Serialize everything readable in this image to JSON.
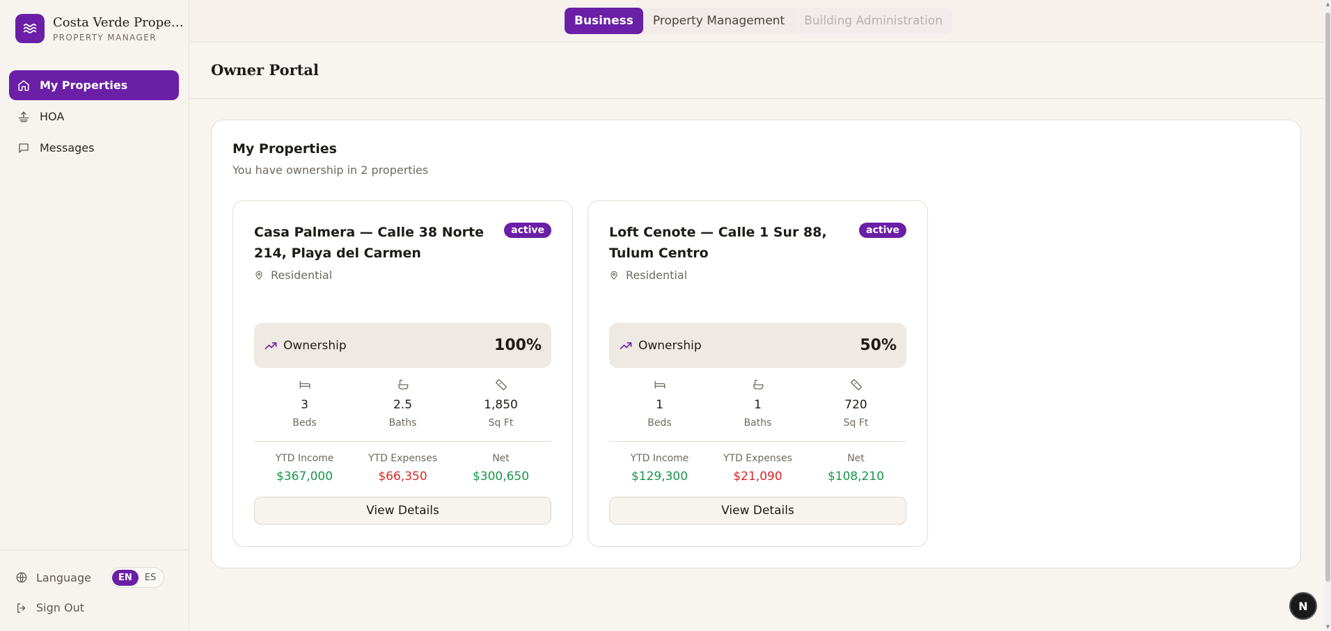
{
  "brand": {
    "name": "Costa Verde Proper...",
    "subtitle": "PROPERTY MANAGER"
  },
  "sidebar": {
    "items": [
      {
        "label": "My Properties",
        "icon": "home-icon",
        "active": true
      },
      {
        "label": "HOA",
        "icon": "hoa-icon",
        "active": false
      },
      {
        "label": "Messages",
        "icon": "message-icon",
        "active": false
      }
    ],
    "language_label": "Language",
    "languages": [
      "EN",
      "ES"
    ],
    "selected_language": "EN",
    "sign_out": "Sign Out"
  },
  "topbar": {
    "tabs": [
      {
        "label": "Business",
        "state": "active"
      },
      {
        "label": "Property Management",
        "state": "normal"
      },
      {
        "label": "Building Administration",
        "state": "disabled"
      }
    ]
  },
  "page": {
    "title": "Owner Portal"
  },
  "panel": {
    "title": "My Properties",
    "subtitle": "You have ownership in 2 properties"
  },
  "properties": [
    {
      "name": "Casa Palmera — Calle 38 Norte 214, Playa del Carmen",
      "status": "active",
      "type": "Residential",
      "ownership_label": "Ownership",
      "ownership": "100%",
      "beds": "3",
      "beds_label": "Beds",
      "baths": "2.5",
      "baths_label": "Baths",
      "sqft": "1,850",
      "sqft_label": "Sq Ft",
      "ytd_income_label": "YTD Income",
      "ytd_income": "$367,000",
      "ytd_expenses_label": "YTD Expenses",
      "ytd_expenses": "$66,350",
      "net_label": "Net",
      "net": "$300,650",
      "button": "View Details"
    },
    {
      "name": "Loft Cenote — Calle 1 Sur 88, Tulum Centro",
      "status": "active",
      "type": "Residential",
      "ownership_label": "Ownership",
      "ownership": "50%",
      "beds": "1",
      "beds_label": "Beds",
      "baths": "1",
      "baths_label": "Baths",
      "sqft": "720",
      "sqft_label": "Sq Ft",
      "ytd_income_label": "YTD Income",
      "ytd_income": "$129,300",
      "ytd_expenses_label": "YTD Expenses",
      "ytd_expenses": "$21,090",
      "net_label": "Net",
      "net": "$108,210",
      "button": "View Details"
    }
  ],
  "floating_badge": "N",
  "colors": {
    "accent": "#6a1fa6",
    "positive": "#17964a",
    "negative": "#dc2626"
  }
}
